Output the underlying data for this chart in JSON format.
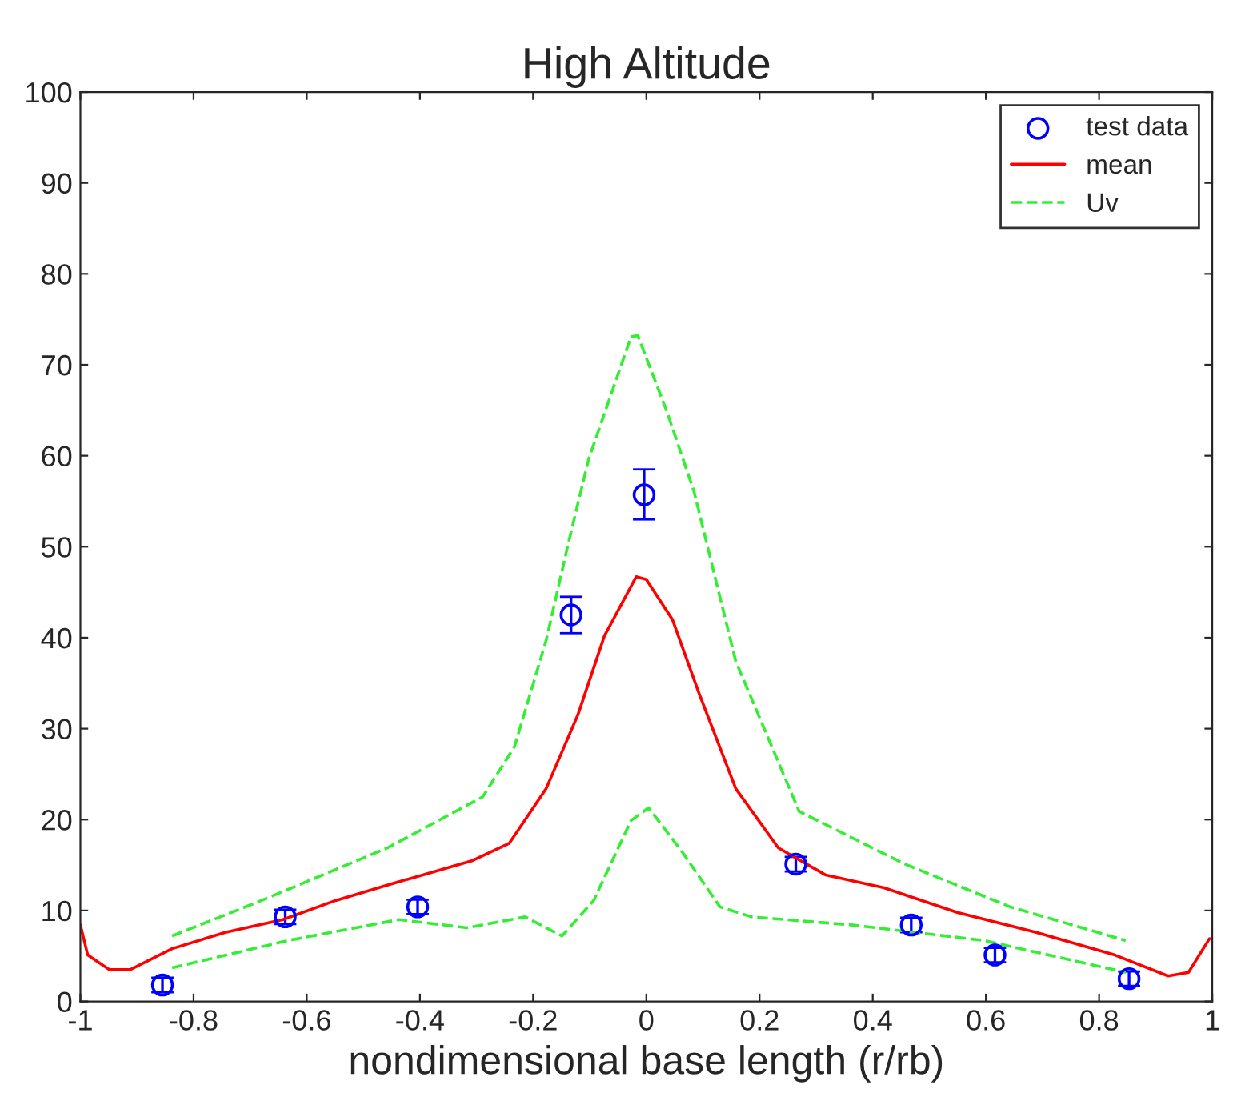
{
  "chart_data": {
    "type": "line",
    "title": "High Altitude",
    "xlabel": "nondimensional base length (r/rb)",
    "xlim": [
      -1,
      1
    ],
    "xticks": [
      -1,
      -0.8,
      -0.6,
      -0.4,
      -0.2,
      0,
      0.2,
      0.4,
      0.6,
      0.8,
      1
    ],
    "ylim": [
      0,
      100
    ],
    "yticks": [
      0,
      10,
      20,
      30,
      40,
      50,
      60,
      70,
      80,
      90,
      100
    ],
    "grid": false,
    "legend": "top right",
    "series": [
      {
        "name": "test data",
        "type": "scatter",
        "marker": "circle",
        "color": "#0000ff",
        "x": [
          -0.855,
          -0.638,
          -0.404,
          -0.133,
          -0.004,
          0.264,
          0.468,
          0.616,
          0.853
        ],
        "values": [
          1.8,
          9.3,
          10.4,
          42.5,
          55.7,
          15.1,
          8.4,
          5.1,
          2.5
        ],
        "errors": [
          0.8,
          0.8,
          0.8,
          2,
          [
            53.0,
            58.5
          ],
          0.8,
          0.8,
          0.8,
          0.8
        ]
      },
      {
        "name": "mean",
        "line_style": "solid",
        "color": "#ff0000",
        "x": [
          -1.0,
          -0.987,
          -0.949,
          -0.912,
          -0.838,
          -0.744,
          -0.642,
          -0.549,
          -0.446,
          -0.307,
          -0.242,
          -0.177,
          -0.121,
          -0.074,
          -0.018,
          0.0,
          0.046,
          0.093,
          0.158,
          0.233,
          0.317,
          0.42,
          0.549,
          0.689,
          0.828,
          0.922,
          0.958,
          0.995
        ],
        "values": [
          8.4,
          5.1,
          3.5,
          3.5,
          5.8,
          7.6,
          9.0,
          11.1,
          13.0,
          15.5,
          17.4,
          23.4,
          31.5,
          40.2,
          46.7,
          46.4,
          42.0,
          33.9,
          23.4,
          16.9,
          13.9,
          12.5,
          9.8,
          7.6,
          5.1,
          2.8,
          3.2,
          6.9
        ]
      },
      {
        "name": "Uv",
        "line_style": "dashed",
        "color": "#33ee33",
        "x": [
          -0.838,
          -0.68,
          -0.457,
          -0.289,
          -0.233,
          -0.177,
          -0.138,
          -0.102,
          -0.027,
          -0.015,
          0.036,
          0.084,
          0.158,
          0.27,
          0.457,
          0.643,
          0.847
        ],
        "values": [
          7.2,
          11.1,
          16.9,
          22.5,
          28.0,
          39.7,
          50.3,
          59.6,
          73.1,
          73.2,
          64.9,
          56.1,
          37.4,
          20.9,
          15.1,
          10.4,
          6.7
        ]
      },
      {
        "line_style": "dashed",
        "color": "#33ee33",
        "x": [
          -0.838,
          -0.633,
          -0.437,
          -0.317,
          -0.214,
          -0.149,
          -0.093,
          -0.027,
          0.004,
          0.065,
          0.13,
          0.186,
          0.365,
          0.597,
          0.847
        ],
        "values": [
          3.7,
          6.7,
          9.0,
          8.1,
          9.3,
          7.2,
          11.1,
          19.9,
          21.3,
          16.3,
          10.4,
          9.3,
          8.4,
          6.7,
          3.2
        ]
      }
    ]
  }
}
